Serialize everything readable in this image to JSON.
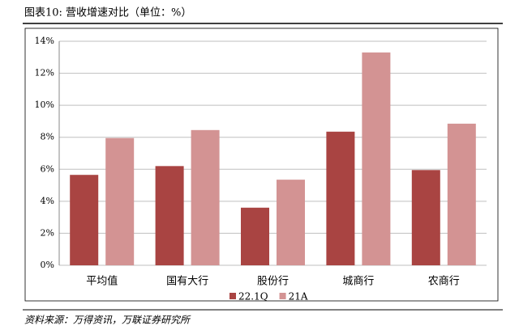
{
  "header": {
    "title": "图表10: 营收增速对比（单位：%）"
  },
  "chart_data": {
    "type": "bar",
    "categories": [
      "平均值",
      "国有大行",
      "股份行",
      "城商行",
      "农商行"
    ],
    "series": [
      {
        "name": "22.1Q",
        "color": "#a94442",
        "values": [
          5.65,
          6.2,
          3.6,
          8.35,
          5.95
        ]
      },
      {
        "name": "21A",
        "color": "#d39393",
        "values": [
          7.95,
          8.45,
          5.35,
          13.3,
          8.85
        ]
      }
    ],
    "ylim": [
      0,
      14
    ],
    "yticks": [
      {
        "value": 0,
        "label": "0%"
      },
      {
        "value": 2,
        "label": "2%"
      },
      {
        "value": 4,
        "label": "4%"
      },
      {
        "value": 6,
        "label": "6%"
      },
      {
        "value": 8,
        "label": "8%"
      },
      {
        "value": 10,
        "label": "10%"
      },
      {
        "value": 12,
        "label": "12%"
      },
      {
        "value": 14,
        "label": "14%"
      }
    ],
    "grid": true
  },
  "footer": {
    "source": "资料来源：万得资讯，万联证券研究所"
  }
}
